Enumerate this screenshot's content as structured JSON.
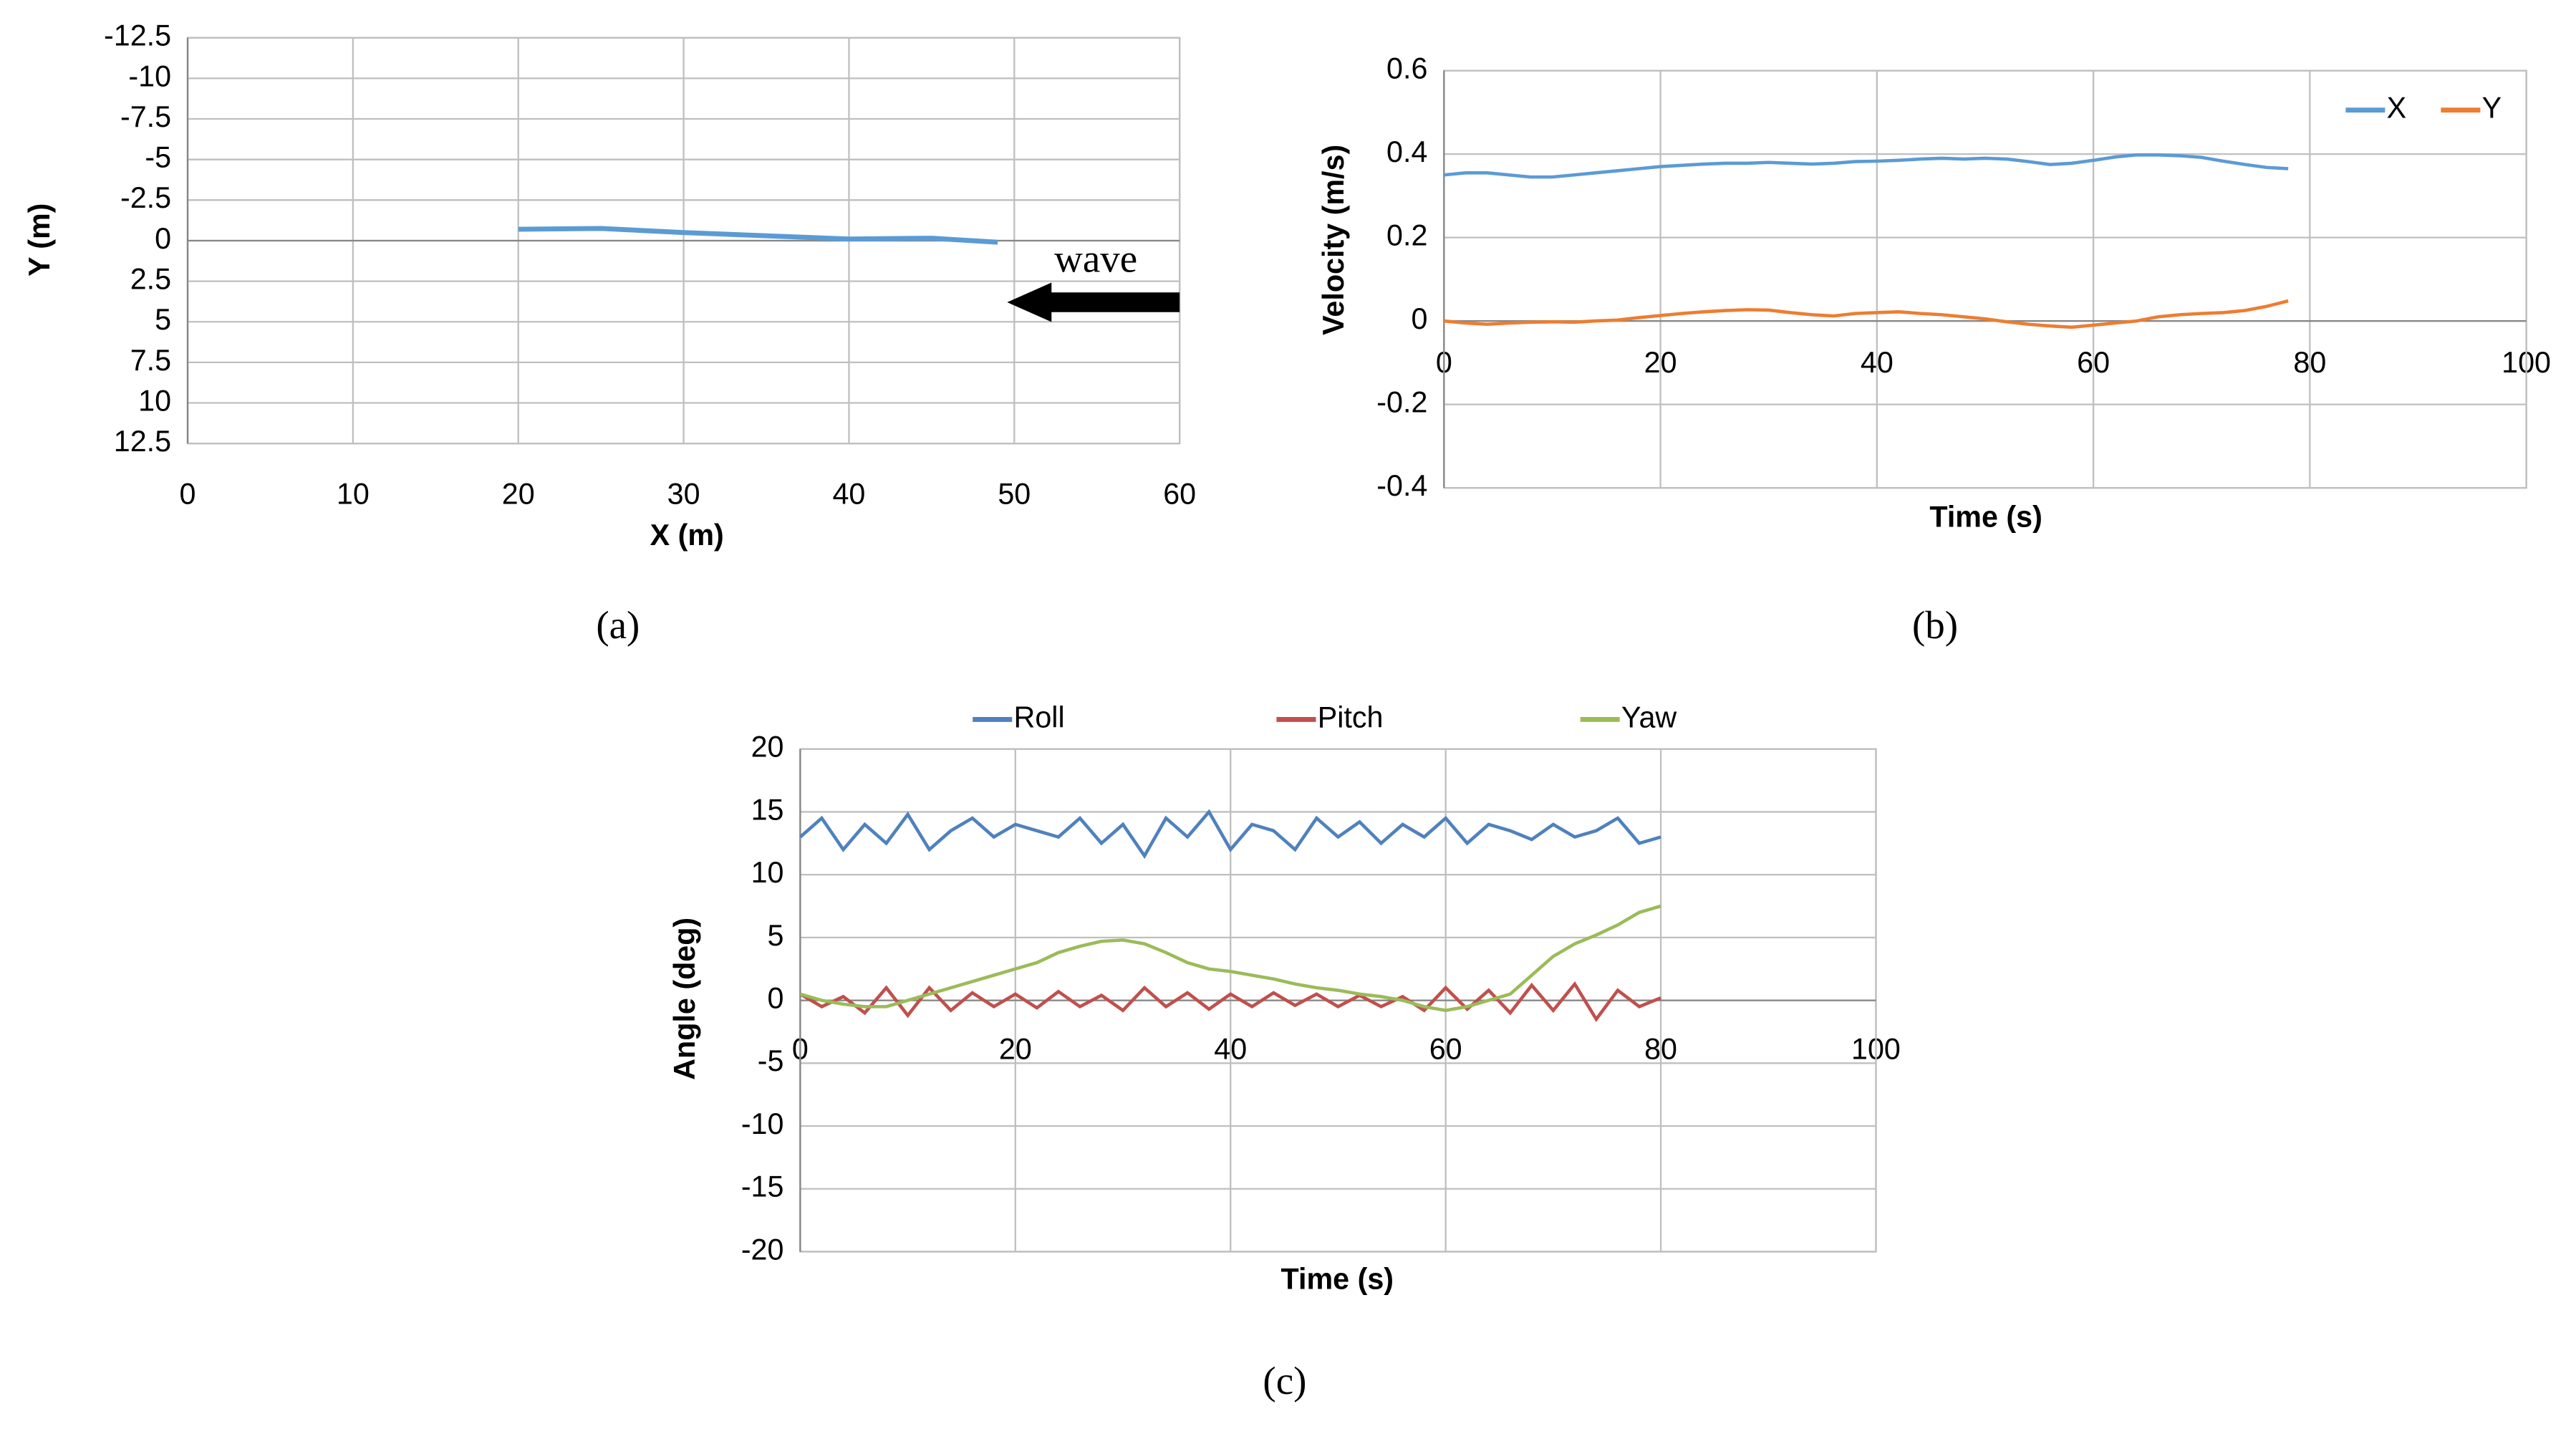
{
  "chart_data": [
    {
      "type": "line",
      "xlabel": "X (m)",
      "ylabel": "Y (m)",
      "annotation": "wave",
      "panel_label": "(a)",
      "x": [
        20,
        25,
        30,
        35,
        40,
        45,
        49
      ],
      "values": [
        -0.7,
        -0.75,
        -0.5,
        -0.3,
        -0.1,
        -0.15,
        0.1
      ],
      "color": "#5b9bd5",
      "xlim": [
        0,
        60
      ],
      "xticks": [
        0,
        10,
        20,
        30,
        40,
        50,
        60
      ],
      "ylim": [
        -12.5,
        12.5
      ],
      "yticks": [
        -12.5,
        -10,
        -7.5,
        -5,
        -2.5,
        0,
        2.5,
        5,
        7.5,
        10,
        12.5
      ],
      "y_inverted": true,
      "grid": true
    },
    {
      "type": "line",
      "xlabel": "Time (s)",
      "ylabel": "Velocity (m/s)",
      "panel_label": "(b)",
      "legend": "top-right",
      "x": [
        0,
        2,
        4,
        6,
        8,
        10,
        12,
        14,
        16,
        18,
        20,
        22,
        24,
        26,
        28,
        30,
        32,
        34,
        36,
        38,
        40,
        42,
        44,
        46,
        48,
        50,
        52,
        54,
        56,
        58,
        60,
        62,
        64,
        66,
        68,
        70,
        72,
        74,
        76,
        78
      ],
      "series": [
        {
          "name": "X",
          "color": "#5b9bd5",
          "values": [
            0.35,
            0.355,
            0.355,
            0.35,
            0.345,
            0.345,
            0.35,
            0.355,
            0.36,
            0.365,
            0.37,
            0.373,
            0.376,
            0.378,
            0.378,
            0.38,
            0.378,
            0.376,
            0.378,
            0.382,
            0.383,
            0.385,
            0.388,
            0.39,
            0.388,
            0.39,
            0.388,
            0.382,
            0.375,
            0.378,
            0.385,
            0.393,
            0.398,
            0.398,
            0.396,
            0.392,
            0.383,
            0.375,
            0.368,
            0.365
          ]
        },
        {
          "name": "Y",
          "color": "#ed7d31",
          "values": [
            0,
            -0.005,
            -0.008,
            -0.005,
            -0.003,
            -0.002,
            -0.003,
            0,
            0.002,
            0.008,
            0.013,
            0.018,
            0.022,
            0.025,
            0.027,
            0.026,
            0.02,
            0.015,
            0.012,
            0.018,
            0.02,
            0.022,
            0.018,
            0.015,
            0.01,
            0.005,
            -0.002,
            -0.008,
            -0.012,
            -0.015,
            -0.01,
            -0.005,
            0,
            0.01,
            0.015,
            0.018,
            0.02,
            0.025,
            0.035,
            0.048
          ]
        }
      ],
      "xlim": [
        0,
        100
      ],
      "xticks": [
        0,
        20,
        40,
        60,
        80,
        100
      ],
      "ylim": [
        -0.4,
        0.6
      ],
      "yticks": [
        -0.4,
        -0.2,
        0,
        0.2,
        0.4,
        0.6
      ],
      "grid": true
    },
    {
      "type": "line",
      "xlabel": "Time (s)",
      "ylabel": "Angle (deg)",
      "panel_label": "(c)",
      "legend": "top",
      "x": [
        0,
        2,
        4,
        6,
        8,
        10,
        12,
        14,
        16,
        18,
        20,
        22,
        24,
        26,
        28,
        30,
        32,
        34,
        36,
        38,
        40,
        42,
        44,
        46,
        48,
        50,
        52,
        54,
        56,
        58,
        60,
        62,
        64,
        66,
        68,
        70,
        72,
        74,
        76,
        78,
        80
      ],
      "series": [
        {
          "name": "Roll",
          "color": "#4f81bd",
          "values": [
            13,
            14.5,
            12,
            14,
            12.5,
            14.8,
            12,
            13.5,
            14.5,
            13,
            14,
            13.5,
            13,
            14.5,
            12.5,
            14,
            11.5,
            14.5,
            13,
            15,
            12,
            14,
            13.5,
            12,
            14.5,
            13,
            14.2,
            12.5,
            14,
            13,
            14.5,
            12.5,
            14,
            13.5,
            12.8,
            14,
            13,
            13.5,
            14.5,
            12.5,
            13
          ]
        },
        {
          "name": "Pitch",
          "color": "#c0504d",
          "values": [
            0.5,
            -0.5,
            0.3,
            -1,
            1,
            -1.2,
            1,
            -0.8,
            0.6,
            -0.5,
            0.5,
            -0.6,
            0.7,
            -0.5,
            0.4,
            -0.8,
            1,
            -0.5,
            0.6,
            -0.7,
            0.5,
            -0.5,
            0.6,
            -0.4,
            0.5,
            -0.5,
            0.4,
            -0.5,
            0.3,
            -0.8,
            1,
            -0.7,
            0.8,
            -1,
            1.2,
            -0.8,
            1.3,
            -1.5,
            0.8,
            -0.5,
            0.2
          ]
        },
        {
          "name": "Yaw",
          "color": "#9bbb59",
          "values": [
            0.5,
            0,
            -0.3,
            -0.5,
            -0.5,
            0,
            0.5,
            1,
            1.5,
            2,
            2.5,
            3,
            3.8,
            4.3,
            4.7,
            4.8,
            4.5,
            3.8,
            3,
            2.5,
            2.3,
            2,
            1.7,
            1.3,
            1,
            0.8,
            0.5,
            0.3,
            0,
            -0.5,
            -0.8,
            -0.5,
            0,
            0.5,
            2,
            3.5,
            4.5,
            5.2,
            6,
            7,
            7.5
          ]
        }
      ],
      "xlim": [
        0,
        100
      ],
      "xticks": [
        0,
        20,
        40,
        60,
        80,
        100
      ],
      "ylim": [
        -20,
        20
      ],
      "yticks": [
        -20,
        -15,
        -10,
        -5,
        0,
        5,
        10,
        15,
        20
      ],
      "grid": true
    }
  ]
}
